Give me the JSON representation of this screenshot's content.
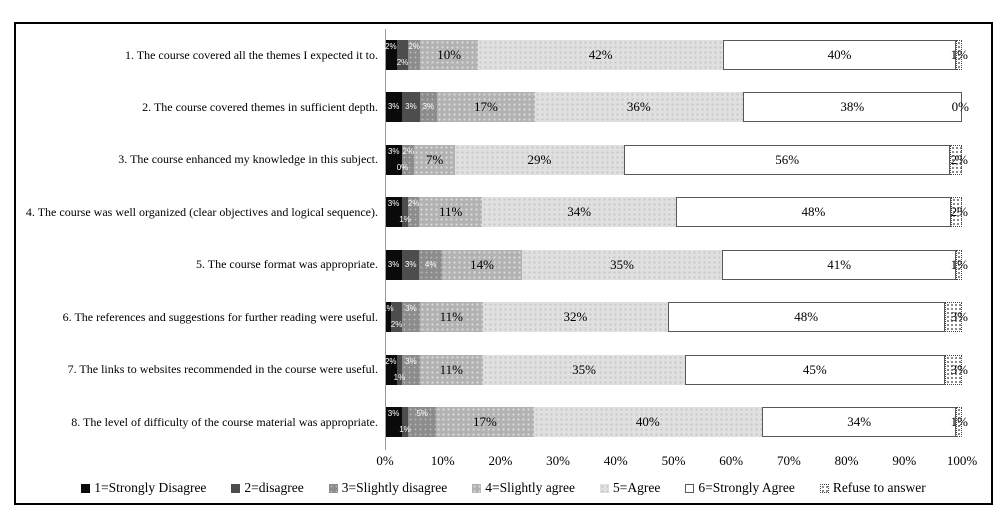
{
  "chart_data": {
    "type": "bar",
    "variant": "stacked-100-horizontal",
    "title": "",
    "xlabel": "",
    "ylabel": "",
    "xlim": [
      0,
      100
    ],
    "grid": false,
    "legend_position": "bottom",
    "x_ticks": [
      "0%",
      "10%",
      "20%",
      "30%",
      "40%",
      "50%",
      "60%",
      "70%",
      "80%",
      "90%",
      "100%"
    ],
    "categories": [
      "1. The course covered all the themes I expected it to.",
      "2. The course covered themes in sufficient depth.",
      "3. The course enhanced my knowledge in this subject.",
      "4. The course was well organized (clear objectives and logical sequence).",
      "5. The course format was appropriate.",
      "6. The references and suggestions for further reading were useful.",
      "7. The links to websites recommended in the course were useful.",
      "8. The level of difficulty of the course material was appropriate."
    ],
    "series": [
      {
        "name": "1=Strongly Disagree",
        "color": "#0a0a0a",
        "values": [
          2,
          3,
          3,
          3,
          3,
          1,
          2,
          3
        ]
      },
      {
        "name": "2=disagree",
        "color": "#4d4d4d",
        "values": [
          2,
          3,
          0,
          1,
          3,
          2,
          1,
          1
        ]
      },
      {
        "name": "3=Slightly disagree",
        "color": "#8c8c8c",
        "values": [
          2,
          3,
          2,
          2,
          4,
          3,
          3,
          5
        ]
      },
      {
        "name": "4=Slightly agree",
        "color": "#b2b2b2",
        "values": [
          10,
          17,
          7,
          11,
          14,
          11,
          11,
          17
        ]
      },
      {
        "name": "5=Agree",
        "color": "#e0e0e0",
        "values": [
          42,
          36,
          29,
          34,
          35,
          32,
          35,
          40
        ]
      },
      {
        "name": "6=Strongly Agree",
        "color": "#ffffff",
        "values": [
          40,
          38,
          56,
          48,
          41,
          48,
          45,
          34
        ]
      },
      {
        "name": "Refuse to answer",
        "color": "#ffffff",
        "pattern": "dots",
        "values": [
          1,
          0,
          2,
          2,
          1,
          3,
          3,
          1
        ]
      }
    ],
    "data_label_suffix": "%"
  }
}
